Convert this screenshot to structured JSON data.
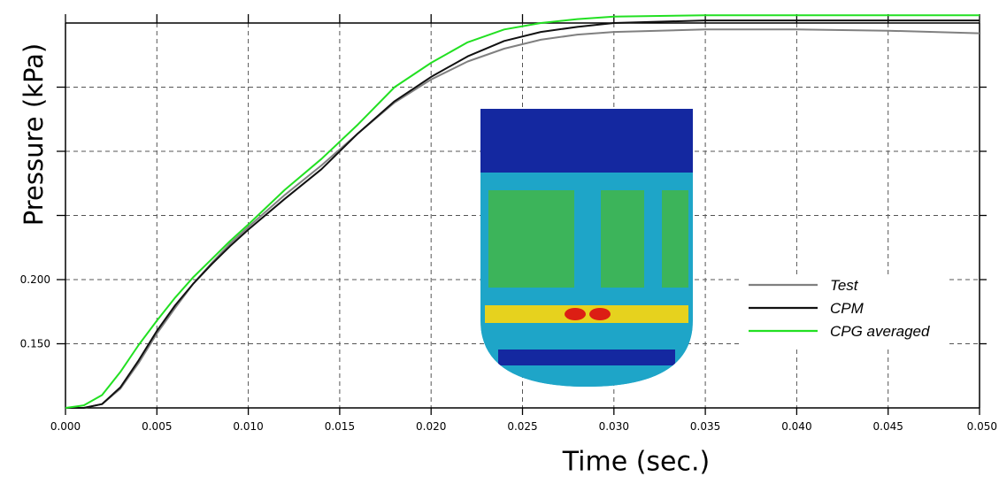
{
  "chart_data": {
    "type": "line",
    "xlabel": "Time (sec.)",
    "ylabel": "Pressure (kPa)",
    "xlim": [
      0,
      0.05
    ],
    "ylim": [
      0.1,
      0.4
    ],
    "x_ticks": [
      "0.000",
      "0.005",
      "0.010",
      "0.015",
      "0.020",
      "0.025",
      "0.030",
      "0.035",
      "0.040",
      "0.045",
      "0.050"
    ],
    "y_ticks": [
      {
        "value": 0.15,
        "label": "0.150"
      },
      {
        "value": 0.2,
        "label": "0.200"
      },
      {
        "value": 0.25,
        "label": ""
      },
      {
        "value": 0.3,
        "label": ""
      },
      {
        "value": 0.35,
        "label": ""
      }
    ],
    "grid": true,
    "legend_position": "bottom-right",
    "series": [
      {
        "name": "Test",
        "color": "#808080",
        "x": [
          0,
          0.001,
          0.002,
          0.003,
          0.004,
          0.005,
          0.006,
          0.007,
          0.008,
          0.009,
          0.01,
          0.012,
          0.014,
          0.016,
          0.018,
          0.02,
          0.022,
          0.024,
          0.026,
          0.028,
          0.03,
          0.035,
          0.04,
          0.045,
          0.05
        ],
        "y": [
          0.1,
          0.1,
          0.103,
          0.115,
          0.135,
          0.158,
          0.178,
          0.197,
          0.213,
          0.228,
          0.241,
          0.266,
          0.289,
          0.314,
          0.338,
          0.356,
          0.37,
          0.38,
          0.387,
          0.391,
          0.393,
          0.395,
          0.395,
          0.394,
          0.392
        ]
      },
      {
        "name": "CPM",
        "color": "#111111",
        "x": [
          0,
          0.001,
          0.002,
          0.003,
          0.004,
          0.005,
          0.006,
          0.007,
          0.008,
          0.009,
          0.01,
          0.012,
          0.014,
          0.016,
          0.018,
          0.02,
          0.022,
          0.024,
          0.026,
          0.028,
          0.03,
          0.035,
          0.04,
          0.045,
          0.05
        ],
        "y": [
          0.1,
          0.1,
          0.103,
          0.116,
          0.137,
          0.16,
          0.18,
          0.197,
          0.212,
          0.226,
          0.239,
          0.263,
          0.286,
          0.314,
          0.339,
          0.358,
          0.374,
          0.386,
          0.393,
          0.397,
          0.4,
          0.402,
          0.402,
          0.402,
          0.402
        ]
      },
      {
        "name": "CPG averaged",
        "color": "#22e022",
        "x": [
          0,
          0.0005,
          0.001,
          0.002,
          0.003,
          0.004,
          0.005,
          0.006,
          0.007,
          0.008,
          0.009,
          0.01,
          0.012,
          0.014,
          0.016,
          0.018,
          0.02,
          0.022,
          0.024,
          0.026,
          0.028,
          0.03,
          0.035,
          0.04,
          0.045,
          0.05
        ],
        "y": [
          0.1,
          0.101,
          0.102,
          0.11,
          0.128,
          0.149,
          0.168,
          0.186,
          0.202,
          0.216,
          0.23,
          0.243,
          0.27,
          0.294,
          0.321,
          0.35,
          0.369,
          0.385,
          0.395,
          0.4,
          0.403,
          0.405,
          0.406,
          0.406,
          0.406,
          0.406
        ]
      }
    ]
  },
  "inset": {
    "colors": {
      "blue": "#1428a0",
      "cyan": "#1ea5c8",
      "green": "#3cb45a",
      "yellow": "#e6d21e",
      "red": "#dc1e14"
    }
  }
}
